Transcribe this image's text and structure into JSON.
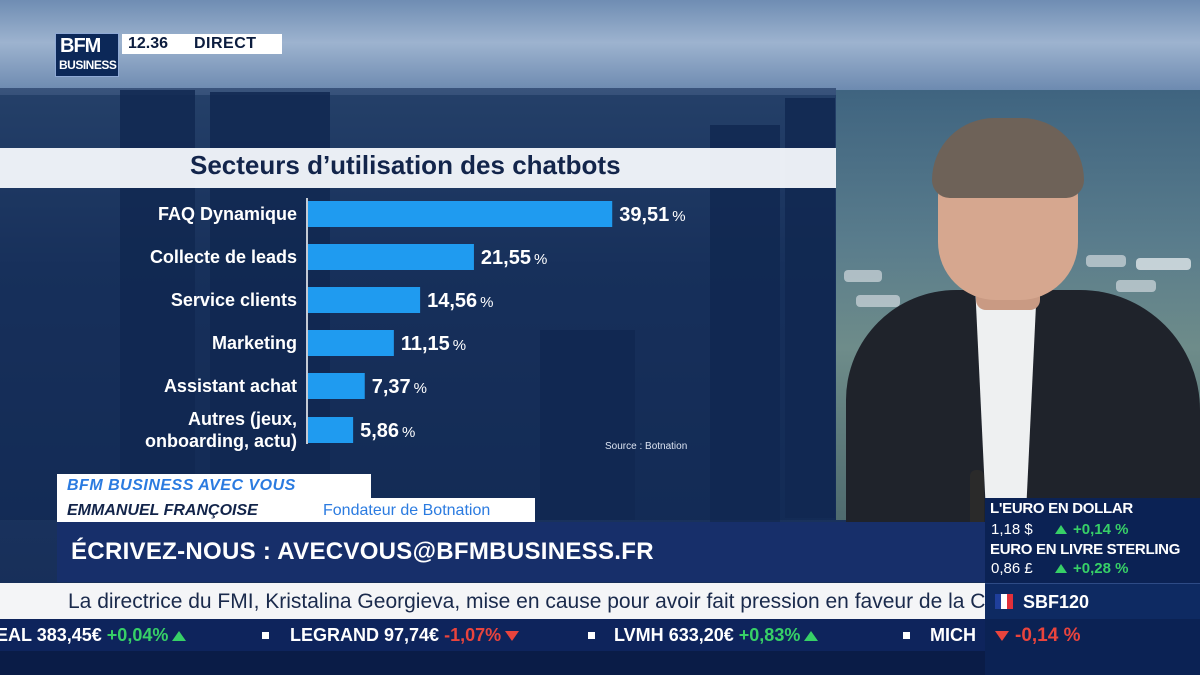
{
  "broadcast": {
    "logo_top": "BFM",
    "logo_bottom": "BUSINESS",
    "time": "12.36",
    "live_label": "DIRECT"
  },
  "chart_data": {
    "type": "bar",
    "orientation": "horizontal",
    "title": "Secteurs d’utilisation des chatbots",
    "categories": [
      "FAQ Dynamique",
      "Collecte de leads",
      "Service clients",
      "Marketing",
      "Assistant achat",
      "Autres (jeux, onboarding, actu)"
    ],
    "category_lines": [
      [
        "FAQ Dynamique"
      ],
      [
        "Collecte de leads"
      ],
      [
        "Service clients"
      ],
      [
        "Marketing"
      ],
      [
        "Assistant achat"
      ],
      [
        "Autres (jeux,",
        "onboarding, actu)"
      ]
    ],
    "values": [
      39.51,
      21.55,
      14.56,
      11.15,
      7.37,
      5.86
    ],
    "value_labels": [
      "39,51",
      "21,55",
      "14,56",
      "11,15",
      "7,37",
      "5,86"
    ],
    "unit": "%",
    "source": "Source : Botnation",
    "bar_color": "#1f9bf0",
    "grid": false
  },
  "lower_third": {
    "show": "BFM BUSINESS AVEC VOUS",
    "guest_name": "EMMANUEL FRANÇOISE",
    "guest_role": "Fondateur de Botnation",
    "contact": "ÉCRIVEZ-NOUS : AVECVOUS@BFMBUSINESS.FR"
  },
  "news_ticker": "La directrice du FMI, Kristalina Georgieva, mise en cause pour avoir fait pression en faveur de la Chine.",
  "stock_ticker": [
    {
      "name": "EAL",
      "price": "383,45€",
      "change": "+0,04%",
      "direction": "up"
    },
    {
      "name": "LEGRAND",
      "price": "97,74€",
      "change": "-1,07%",
      "direction": "down"
    },
    {
      "name": "LVMH",
      "price": "633,20€",
      "change": "+0,83%",
      "direction": "up"
    },
    {
      "name": "MICH",
      "price": "",
      "change": "",
      "direction": ""
    }
  ],
  "markets": {
    "euro_dollar": {
      "label": "L'EURO EN DOLLAR",
      "value": "1,18 $",
      "change": "+0,14 %",
      "direction": "up"
    },
    "euro_sterling": {
      "label": "EURO EN LIVRE STERLING",
      "value": "0,86 £",
      "change": "+0,28 %",
      "direction": "up"
    },
    "index": {
      "name": "SBF120",
      "change": "-0,14 %",
      "direction": "down"
    }
  },
  "colors": {
    "accent_blue": "#2b7be0",
    "navy": "#0e245c",
    "up": "#37d067",
    "down": "#e9443d"
  }
}
